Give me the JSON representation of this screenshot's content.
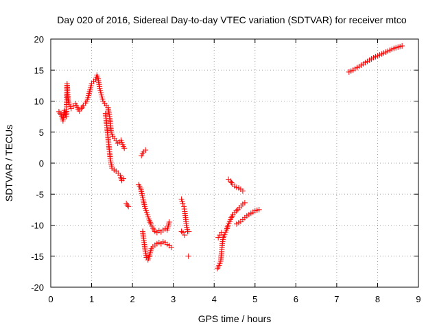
{
  "chart_data": {
    "type": "scatter",
    "title": "Day 020 of 2016, Sidereal Day-to-day VTEC variation (SDTVAR) for receiver mtco",
    "xlabel": "GPS time / hours",
    "ylabel": "SDTVAR / TECUs",
    "xlim": [
      0,
      9
    ],
    "ylim": [
      -20,
      20
    ],
    "x_ticks": [
      0,
      1,
      2,
      3,
      4,
      5,
      6,
      7,
      8,
      9
    ],
    "y_ticks": [
      -20,
      -15,
      -10,
      -5,
      0,
      5,
      10,
      15,
      20
    ],
    "grid": true,
    "marker": "+",
    "series_color": "#ff0000",
    "series": [
      {
        "name": "SDTVAR",
        "segments": [
          {
            "points": [
              [
                0.2,
                8.3
              ],
              [
                0.25,
                7.8
              ],
              [
                0.3,
                6.8
              ],
              [
                0.33,
                8.5
              ],
              [
                0.38,
                7.5
              ],
              [
                0.4,
                12.8
              ],
              [
                0.42,
                10.5
              ],
              [
                0.45,
                9.5
              ],
              [
                0.5,
                8.8
              ],
              [
                0.55,
                9.2
              ],
              [
                0.6,
                9.6
              ],
              [
                0.65,
                9.0
              ],
              [
                0.7,
                8.4
              ],
              [
                0.75,
                8.8
              ],
              [
                0.8,
                9.3
              ],
              [
                0.85,
                9.7
              ],
              [
                0.9,
                10.3
              ],
              [
                0.95,
                11.5
              ],
              [
                1.0,
                12.8
              ],
              [
                1.05,
                13.2
              ],
              [
                1.1,
                13.5
              ],
              [
                1.13,
                14.2
              ],
              [
                1.16,
                13.6
              ],
              [
                1.2,
                12.0
              ],
              [
                1.24,
                11.0
              ],
              [
                1.28,
                10.0
              ],
              [
                1.32,
                9.6
              ],
              [
                1.36,
                9.3
              ],
              [
                1.4,
                9.0
              ],
              [
                1.44,
                7.5
              ],
              [
                1.48,
                5.0
              ],
              [
                1.52,
                4.3
              ],
              [
                1.56,
                4.0
              ],
              [
                1.6,
                3.6
              ],
              [
                1.64,
                3.2
              ],
              [
                1.68,
                3.4
              ],
              [
                1.72,
                3.7
              ],
              [
                1.76,
                3.0
              ],
              [
                1.8,
                2.4
              ]
            ]
          },
          {
            "points": [
              [
                1.34,
                8.0
              ],
              [
                1.38,
                5.5
              ],
              [
                1.42,
                3.0
              ],
              [
                1.46,
                0.5
              ],
              [
                1.5,
                -0.8
              ],
              [
                1.55,
                -1.1
              ],
              [
                1.6,
                -1.3
              ],
              [
                1.65,
                -1.6
              ],
              [
                1.7,
                -2.0
              ],
              [
                1.74,
                -2.8
              ],
              [
                1.78,
                -2.5
              ]
            ]
          },
          {
            "points": [
              [
                1.85,
                -6.5
              ],
              [
                1.9,
                -7.0
              ]
            ]
          },
          {
            "points": [
              [
                2.22,
                1.2
              ],
              [
                2.27,
                1.8
              ],
              [
                2.32,
                2.1
              ]
            ]
          },
          {
            "points": [
              [
                2.15,
                -3.5
              ],
              [
                2.2,
                -4.0
              ],
              [
                2.25,
                -5.5
              ],
              [
                2.3,
                -7.0
              ],
              [
                2.35,
                -8.0
              ],
              [
                2.4,
                -9.0
              ],
              [
                2.45,
                -9.8
              ],
              [
                2.5,
                -10.5
              ],
              [
                2.55,
                -11.0
              ],
              [
                2.6,
                -11.2
              ],
              [
                2.65,
                -10.9
              ],
              [
                2.7,
                -11.1
              ],
              [
                2.75,
                -10.8
              ],
              [
                2.8,
                -10.6
              ],
              [
                2.85,
                -10.8
              ],
              [
                2.9,
                -9.5
              ]
            ]
          },
          {
            "points": [
              [
                2.25,
                -11.0
              ],
              [
                2.28,
                -12.5
              ],
              [
                2.31,
                -14.0
              ],
              [
                2.34,
                -15.2
              ],
              [
                2.38,
                -15.6
              ],
              [
                2.42,
                -14.8
              ],
              [
                2.46,
                -13.8
              ],
              [
                2.5,
                -13.5
              ],
              [
                2.55,
                -13.2
              ],
              [
                2.6,
                -13.0
              ],
              [
                2.65,
                -12.8
              ],
              [
                2.7,
                -13.0
              ],
              [
                2.75,
                -12.7
              ],
              [
                2.8,
                -12.8
              ],
              [
                2.85,
                -13.1
              ],
              [
                2.9,
                -13.3
              ],
              [
                2.95,
                -13.6
              ]
            ]
          },
          {
            "points": [
              [
                3.2,
                -5.8
              ],
              [
                3.23,
                -6.5
              ],
              [
                3.26,
                -7.0
              ],
              [
                3.28,
                -7.8
              ],
              [
                3.3,
                -8.8
              ],
              [
                3.32,
                -10.0
              ],
              [
                3.35,
                -11.0
              ],
              [
                3.38,
                -11.0
              ]
            ]
          },
          {
            "points": [
              [
                3.2,
                -11.0
              ],
              [
                3.24,
                -11.2
              ],
              [
                3.28,
                -11.6
              ]
            ]
          },
          {
            "points": [
              [
                3.37,
                -15.0
              ]
            ]
          },
          {
            "points": [
              [
                4.08,
                -17.0
              ],
              [
                4.12,
                -16.5
              ],
              [
                4.16,
                -15.8
              ],
              [
                4.18,
                -14.5
              ],
              [
                4.2,
                -13.0
              ],
              [
                4.22,
                -12.0
              ],
              [
                4.26,
                -11.5
              ],
              [
                4.3,
                -10.8
              ],
              [
                4.34,
                -10.0
              ],
              [
                4.38,
                -9.4
              ],
              [
                4.42,
                -8.8
              ],
              [
                4.46,
                -8.3
              ],
              [
                4.5,
                -8.0
              ],
              [
                4.54,
                -7.7
              ],
              [
                4.58,
                -7.5
              ],
              [
                4.62,
                -7.2
              ],
              [
                4.66,
                -6.9
              ],
              [
                4.7,
                -6.6
              ],
              [
                4.75,
                -6.4
              ]
            ]
          },
          {
            "points": [
              [
                4.1,
                -12.0
              ],
              [
                4.14,
                -11.6
              ],
              [
                4.18,
                -11.2
              ]
            ]
          },
          {
            "points": [
              [
                4.35,
                -2.6
              ],
              [
                4.4,
                -2.9
              ],
              [
                4.45,
                -3.4
              ],
              [
                4.5,
                -3.7
              ],
              [
                4.55,
                -3.9
              ],
              [
                4.6,
                -4.0
              ],
              [
                4.65,
                -4.2
              ],
              [
                4.7,
                -4.5
              ]
            ]
          },
          {
            "points": [
              [
                4.55,
                -9.8
              ],
              [
                4.6,
                -9.6
              ],
              [
                4.65,
                -9.4
              ],
              [
                4.7,
                -9.1
              ],
              [
                4.75,
                -8.8
              ],
              [
                4.8,
                -8.5
              ],
              [
                4.85,
                -8.3
              ],
              [
                4.9,
                -8.1
              ],
              [
                4.95,
                -7.9
              ],
              [
                5.0,
                -7.7
              ],
              [
                5.05,
                -7.6
              ],
              [
                5.1,
                -7.5
              ]
            ]
          },
          {
            "points": [
              [
                7.3,
                14.7
              ],
              [
                7.4,
                15.0
              ],
              [
                7.5,
                15.4
              ],
              [
                7.6,
                15.8
              ],
              [
                7.7,
                16.2
              ],
              [
                7.8,
                16.6
              ],
              [
                7.9,
                17.0
              ],
              [
                8.0,
                17.3
              ],
              [
                8.1,
                17.6
              ],
              [
                8.2,
                17.9
              ],
              [
                8.3,
                18.2
              ],
              [
                8.4,
                18.5
              ],
              [
                8.5,
                18.7
              ],
              [
                8.6,
                18.9
              ]
            ]
          }
        ]
      }
    ]
  }
}
